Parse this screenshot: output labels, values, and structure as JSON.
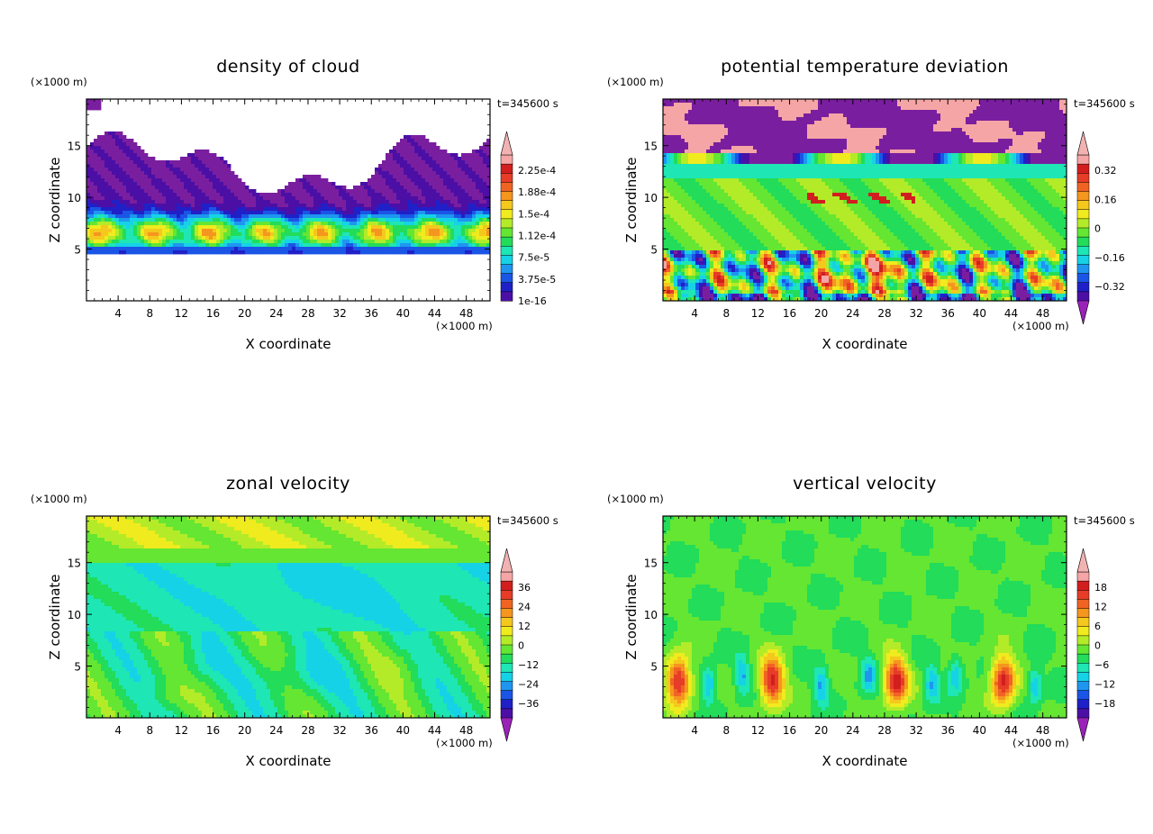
{
  "palette": {
    "ncl_rainbow": [
      "#7a1ea0",
      "#4b0fa6",
      "#2020c8",
      "#1a55e6",
      "#1e96f0",
      "#16d2e6",
      "#1ee6b4",
      "#22dc5a",
      "#64e632",
      "#b4eb28",
      "#f0eb1e",
      "#f5c81e",
      "#f5961e",
      "#f06423",
      "#e63c28",
      "#d21e1e",
      "#f5a5a5"
    ],
    "under_color": "#9a22b8",
    "over_color": "#f2b2b2"
  },
  "chart_data": [
    {
      "id": "cloud",
      "type": "heatmap",
      "title": "density of cloud",
      "xlabel": "X coordinate",
      "ylabel": "Z coordinate",
      "x_unit": "(×1000 m)",
      "y_unit": "(×1000 m)",
      "time_label": "t=345600 s",
      "xlim": [
        0,
        51
      ],
      "ylim": [
        0,
        19.5
      ],
      "x_ticks": [
        "4",
        "8",
        "12",
        "16",
        "20",
        "24",
        "28",
        "32",
        "36",
        "40",
        "44",
        "48"
      ],
      "y_ticks": [
        "5",
        "10",
        "15"
      ],
      "colorbar_labels": [
        "2.25e-4",
        "1.88e-4",
        "1.5e-4",
        "1.12e-4",
        "7.5e-5",
        "3.75e-5",
        "1e-16"
      ],
      "colorbar_arrows": "top",
      "field": "cloud"
    },
    {
      "id": "theta",
      "type": "heatmap",
      "title": "potential temperature deviation",
      "xlabel": "X coordinate",
      "ylabel": "Z coordinate",
      "x_unit": "(×1000 m)",
      "y_unit": "(×1000 m)",
      "time_label": "t=345600 s",
      "xlim": [
        0,
        51
      ],
      "ylim": [
        0,
        19.5
      ],
      "x_ticks": [
        "4",
        "8",
        "12",
        "16",
        "20",
        "24",
        "28",
        "32",
        "36",
        "40",
        "44",
        "48"
      ],
      "y_ticks": [
        "5",
        "10",
        "15"
      ],
      "colorbar_labels": [
        "0.32",
        "0.16",
        "0",
        "−0.16",
        "−0.32"
      ],
      "colorbar_arrows": "both",
      "field": "theta"
    },
    {
      "id": "zonal",
      "type": "heatmap",
      "title": "zonal velocity",
      "xlabel": "X coordinate",
      "ylabel": "Z coordinate",
      "x_unit": "(×1000 m)",
      "y_unit": "(×1000 m)",
      "time_label": "t=345600 s",
      "xlim": [
        0,
        51
      ],
      "ylim": [
        0,
        19.5
      ],
      "x_ticks": [
        "4",
        "8",
        "12",
        "16",
        "20",
        "24",
        "28",
        "32",
        "36",
        "40",
        "44",
        "48"
      ],
      "y_ticks": [
        "5",
        "10",
        "15"
      ],
      "colorbar_labels": [
        "36",
        "24",
        "12",
        "0",
        "−12",
        "−24",
        "−36"
      ],
      "colorbar_arrows": "both",
      "field": "zonal"
    },
    {
      "id": "vertical",
      "type": "heatmap",
      "title": "vertical velocity",
      "xlabel": "X coordinate",
      "ylabel": "Z coordinate",
      "x_unit": "(×1000 m)",
      "y_unit": "(×1000 m)",
      "time_label": "t=345600 s",
      "xlim": [
        0,
        51
      ],
      "ylim": [
        0,
        19.5
      ],
      "x_ticks": [
        "4",
        "8",
        "12",
        "16",
        "20",
        "24",
        "28",
        "32",
        "36",
        "40",
        "44",
        "48"
      ],
      "y_ticks": [
        "5",
        "10",
        "15"
      ],
      "colorbar_labels": [
        "18",
        "12",
        "6",
        "0",
        "−6",
        "−12",
        "−18"
      ],
      "colorbar_arrows": "both",
      "field": "vertical"
    }
  ]
}
